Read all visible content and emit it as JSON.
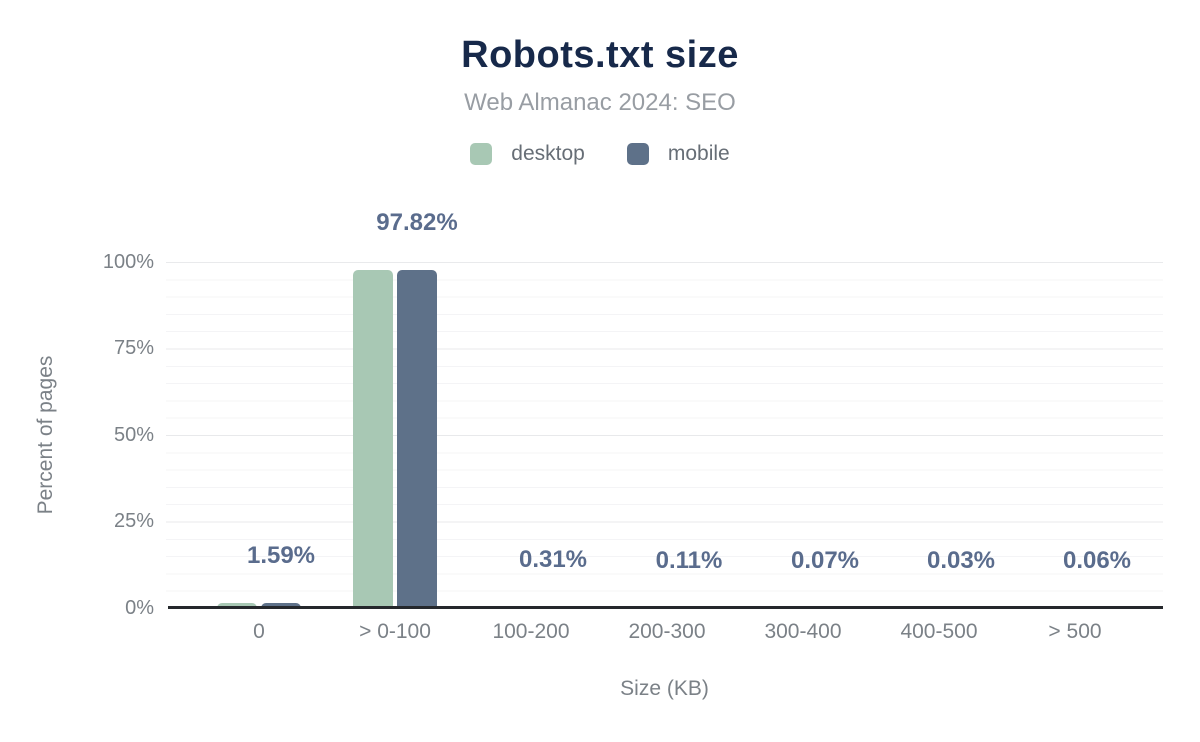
{
  "title": "Robots.txt size",
  "subtitle": "Web Almanac 2024: SEO",
  "legend": [
    {
      "label": "desktop",
      "color": "#a8c8b4"
    },
    {
      "label": "mobile",
      "color": "#5e7189"
    }
  ],
  "axes": {
    "y_title": "Percent of pages",
    "x_title": "Size (KB)",
    "y_ticks": [
      "100%",
      "75%",
      "50%",
      "25%",
      "0%"
    ]
  },
  "colors": {
    "title": "#17294a",
    "subtitle": "#989da3",
    "data_label": "#5a6c8d",
    "axis_line": "#25282c",
    "tick_label": "#7b8187",
    "desktop_bar": "#a8c8b4",
    "mobile_bar": "#5e7189"
  },
  "chart_data": {
    "type": "bar",
    "title": "Robots.txt size",
    "subtitle": "Web Almanac 2024: SEO",
    "xlabel": "Size (KB)",
    "ylabel": "Percent of pages",
    "ylim": [
      0,
      100
    ],
    "y_tick_interval": 25,
    "grid": "horizontal, minor every 5%, major every 25%",
    "legend_position": "top-center",
    "categories": [
      "0",
      "> 0-100",
      "100-200",
      "200-300",
      "300-400",
      "400-500",
      "> 500"
    ],
    "series": [
      {
        "name": "desktop",
        "color": "#a8c8b4",
        "values": [
          1.59,
          97.82,
          0.31,
          0.11,
          0.07,
          0.03,
          0.06
        ]
      },
      {
        "name": "mobile",
        "color": "#5e7189",
        "values": [
          1.59,
          97.82,
          0.31,
          0.11,
          0.07,
          0.03,
          0.06
        ]
      }
    ],
    "data_labels": [
      "1.59%",
      "97.82%",
      "0.31%",
      "0.11%",
      "0.07%",
      "0.03%",
      "0.06%"
    ],
    "data_labels_note_visible_over": "mobile"
  }
}
